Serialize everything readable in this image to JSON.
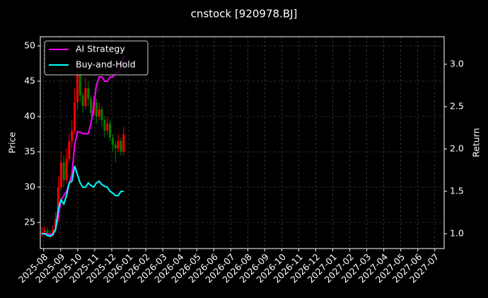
{
  "chart_data": {
    "type": "candlestick",
    "title": "cnstock [920978.BJ]",
    "ylabel": "Price",
    "y2label": "Return",
    "xlim": [
      -0.2,
      23.55
    ],
    "xticks": [
      {
        "value": 0,
        "label": "2025-08"
      },
      {
        "value": 1,
        "label": "2025-09"
      },
      {
        "value": 2,
        "label": "2025-10"
      },
      {
        "value": 3,
        "label": "2025-11"
      },
      {
        "value": 4,
        "label": "2025-12"
      },
      {
        "value": 5,
        "label": "2026-01"
      },
      {
        "value": 6,
        "label": "2026-02"
      },
      {
        "value": 7,
        "label": "2026-03"
      },
      {
        "value": 8,
        "label": "2026-04"
      },
      {
        "value": 9,
        "label": "2026-05"
      },
      {
        "value": 10,
        "label": "2026-06"
      },
      {
        "value": 11,
        "label": "2026-07"
      },
      {
        "value": 12,
        "label": "2026-08"
      },
      {
        "value": 13,
        "label": "2026-09"
      },
      {
        "value": 14,
        "label": "2026-10"
      },
      {
        "value": 15,
        "label": "2026-11"
      },
      {
        "value": 16,
        "label": "2026-12"
      },
      {
        "value": 17,
        "label": "2027-01"
      },
      {
        "value": 18,
        "label": "2027-02"
      },
      {
        "value": 19,
        "label": "2027-03"
      },
      {
        "value": 20,
        "label": "2027-04"
      },
      {
        "value": 21,
        "label": "2027-05"
      },
      {
        "value": 22,
        "label": "2027-06"
      },
      {
        "value": 23,
        "label": "2027-07"
      }
    ],
    "ylim": [
      21.3,
      51.3
    ],
    "yticks": [
      25,
      30,
      35,
      40,
      45,
      50
    ],
    "y2lim": [
      0.825,
      3.325
    ],
    "y2ticks": [
      {
        "value": 1,
        "label": "1.0"
      },
      1.5,
      {
        "value": 2,
        "label": "2.0"
      },
      2.5,
      {
        "value": 3,
        "label": "3.0"
      }
    ],
    "grid": true,
    "legend": "upper left",
    "up_color": "#ff0000",
    "down_color": "#008000",
    "x": [
      -0.1,
      0.06,
      0.22,
      0.38,
      0.54,
      0.7,
      0.86,
      1.02,
      1.18,
      1.34,
      1.5,
      1.66,
      1.82,
      1.98,
      2.14,
      2.3,
      2.46,
      2.62,
      2.78,
      2.94,
      3.1,
      3.26,
      3.42,
      3.58,
      3.74,
      3.9,
      4.06,
      4.22,
      4.38,
      4.54,
      4.7
    ],
    "open": [
      23.3,
      23.6,
      23.9,
      23.4,
      23.2,
      24.0,
      25.5,
      30.0,
      33.5,
      31.0,
      34.0,
      36.5,
      38.0,
      42.0,
      46.0,
      43.0,
      41.5,
      44.0,
      42.5,
      40.5,
      42.0,
      40.0,
      41.0,
      39.5,
      38.0,
      39.0,
      37.0,
      36.0,
      35.5,
      36.5,
      35.0
    ],
    "high": [
      24.4,
      24.5,
      24.3,
      23.9,
      24.6,
      26.5,
      31.5,
      35.0,
      34.5,
      35.5,
      37.5,
      39.5,
      44.0,
      49.5,
      47.0,
      43.5,
      45.5,
      45.0,
      43.0,
      43.0,
      42.5,
      42.0,
      41.5,
      40.0,
      40.0,
      39.5,
      37.5,
      36.5,
      37.5,
      37.0,
      38.5
    ],
    "low": [
      23.0,
      23.2,
      23.0,
      22.7,
      22.9,
      23.6,
      25.0,
      29.5,
      30.0,
      30.5,
      33.5,
      35.5,
      37.5,
      41.0,
      42.0,
      40.5,
      41.0,
      41.5,
      40.0,
      40.0,
      39.0,
      39.5,
      38.5,
      37.0,
      37.5,
      36.5,
      35.0,
      33.5,
      35.0,
      34.5,
      34.5
    ],
    "close": [
      23.6,
      23.9,
      23.4,
      23.2,
      24.0,
      25.5,
      30.0,
      33.5,
      31.0,
      34.0,
      36.5,
      38.0,
      42.0,
      46.0,
      43.0,
      41.5,
      44.0,
      42.5,
      40.5,
      42.0,
      40.0,
      41.0,
      39.5,
      38.0,
      39.0,
      37.0,
      36.0,
      35.5,
      36.5,
      35.0,
      37.5
    ],
    "series": [
      {
        "name": "AI Strategy",
        "color": "#ff00ff",
        "axis": "y2",
        "values": [
          1.0,
          1.0,
          1.0,
          0.99,
          1.0,
          1.05,
          1.2,
          1.4,
          1.45,
          1.5,
          1.6,
          1.7,
          2.05,
          2.2,
          2.2,
          2.18,
          2.18,
          2.18,
          2.3,
          2.5,
          2.75,
          2.85,
          2.85,
          2.8,
          2.8,
          2.85,
          2.85,
          2.9,
          2.9,
          2.95,
          3.1
        ]
      },
      {
        "name": "Buy-and-Hold",
        "color": "#00ffff",
        "axis": "y2",
        "values": [
          1.0,
          1.0,
          0.98,
          0.97,
          0.99,
          1.05,
          1.3,
          1.4,
          1.35,
          1.45,
          1.6,
          1.62,
          1.8,
          1.7,
          1.6,
          1.55,
          1.55,
          1.6,
          1.57,
          1.55,
          1.6,
          1.62,
          1.58,
          1.56,
          1.55,
          1.5,
          1.48,
          1.45,
          1.45,
          1.5,
          1.5
        ]
      }
    ]
  }
}
